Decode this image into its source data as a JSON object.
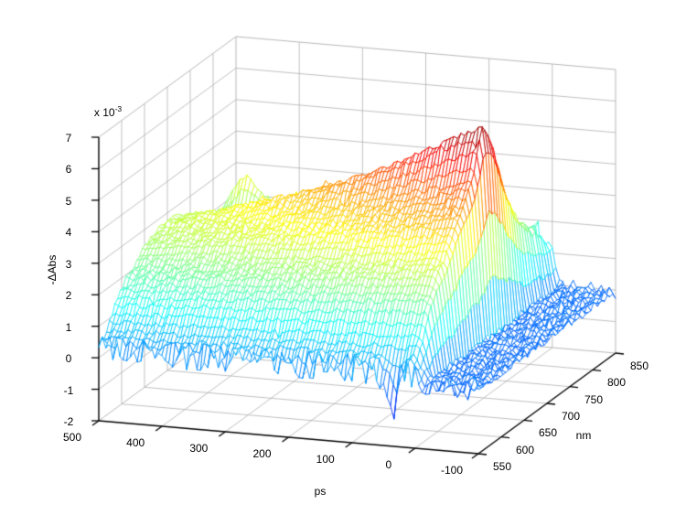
{
  "figure": {
    "background": "#ffffff"
  },
  "chart_data": {
    "type": "surface",
    "style": "mesh3d-wireframe",
    "colormap": "jet",
    "grid": true,
    "axis_color": "#000000",
    "grid_color": "#b0b0b0",
    "face_color": "#ffffff",
    "xlabel": "ps",
    "ylabel": "nm",
    "zlabel": "-ΔAbs",
    "z_exponent_prefix": "x 10",
    "z_exponent_sup": "-3",
    "x_ticks": [
      500,
      400,
      300,
      200,
      100,
      0,
      -100
    ],
    "y_ticks": [
      550,
      600,
      650,
      700,
      750,
      800,
      850
    ],
    "z_ticks": [
      -2,
      -1,
      0,
      1,
      2,
      3,
      4,
      5,
      6,
      7
    ],
    "x_range": [
      -100,
      500
    ],
    "y_range": [
      550,
      850
    ],
    "z_range": [
      -2,
      7
    ],
    "z_value_scale": "1e-3",
    "x_axis_reversed_on_screen": true,
    "times_ps": [
      -100,
      -50,
      -25,
      -10,
      0,
      5,
      10,
      20,
      35,
      60,
      90,
      130,
      180,
      240,
      300,
      370,
      440,
      500
    ],
    "wavelengths_nm": [
      550,
      570,
      590,
      610,
      630,
      650,
      670,
      690,
      710,
      730,
      750,
      770,
      790,
      810,
      830,
      850
    ],
    "values_e3": [
      [
        0,
        0,
        0,
        0,
        0,
        0,
        0,
        0,
        0,
        0,
        0,
        0,
        0,
        0,
        0,
        0
      ],
      [
        0,
        0,
        0,
        0,
        0,
        0,
        0,
        0,
        0,
        0,
        0,
        0,
        0,
        0,
        0,
        0
      ],
      [
        0,
        0,
        0,
        0,
        0,
        0,
        0,
        0,
        0,
        0,
        0,
        0,
        0,
        0,
        0,
        0
      ],
      [
        0,
        0,
        0,
        0,
        0,
        0,
        0,
        0,
        0,
        0,
        0,
        0,
        0,
        0,
        0,
        0
      ],
      [
        0.22,
        0.65,
        1.3,
        1.71,
        1.95,
        2.38,
        2.66,
        3.02,
        3.8,
        3.46,
        2.75,
        2.06,
        1.62,
        1.38,
        1.21,
        1.09
      ],
      [
        0.32,
        0.95,
        1.89,
        2.48,
        2.83,
        3.46,
        3.89,
        4.45,
        5.66,
        5.15,
        4.07,
        3.03,
        2.37,
        2.02,
        1.75,
        1.58
      ],
      [
        0.35,
        1.05,
        2.1,
        2.75,
        3.15,
        3.85,
        4.35,
        5.0,
        6.45,
        5.85,
        4.6,
        3.4,
        2.65,
        2.25,
        1.95,
        -1.9
      ],
      [
        0.35,
        1.05,
        2.1,
        2.75,
        3.15,
        3.85,
        4.34,
        4.98,
        6.39,
        5.8,
        4.57,
        3.39,
        2.64,
        2.25,
        1.95,
        1.75
      ],
      [
        -0.9,
        1.04,
        2.08,
        2.72,
        3.12,
        3.81,
        4.28,
        4.91,
        6.27,
        5.7,
        4.49,
        3.34,
        2.61,
        2.22,
        1.93,
        1.73
      ],
      [
        0.34,
        1.02,
        2.04,
        2.67,
        3.05,
        3.72,
        4.17,
        4.75,
        5.99,
        5.46,
        4.33,
        3.23,
        2.54,
        2.17,
        1.89,
        1.7
      ],
      [
        0.33,
        1.0,
        2.0,
        2.61,
        2.99,
        3.64,
        4.05,
        4.59,
        5.69,
        5.2,
        4.15,
        3.13,
        2.47,
        2.12,
        1.85,
        1.66
      ],
      [
        0.32,
        0.97,
        1.93,
        2.53,
        2.89,
        3.51,
        3.88,
        4.36,
        5.3,
        4.85,
        3.9,
        2.97,
        2.37,
        2.04,
        1.78,
        1.61
      ],
      [
        0.31,
        0.92,
        1.85,
        2.42,
        2.76,
        3.34,
        3.66,
        4.07,
        4.81,
        4.43,
        3.6,
        2.78,
        2.24,
        1.93,
        1.7,
        1.54
      ],
      [
        0.29,
        0.88,
        1.76,
        2.31,
        2.63,
        3.18,
        3.44,
        3.78,
        4.32,
        4.0,
        3.29,
        2.59,
        2.11,
        1.83,
        1.62,
        1.47
      ],
      [
        0.28,
        0.84,
        1.68,
        2.2,
        2.5,
        3.01,
        3.24,
        3.52,
        3.88,
        3.62,
        3.02,
        2.41,
        1.99,
        1.73,
        1.54,
        1.4
      ],
      [
        0.27,
        0.8,
        1.6,
        2.09,
        2.37,
        2.85,
        3.02,
        3.24,
        3.42,
        3.22,
        2.73,
        2.23,
        1.86,
        1.63,
        1.45,
        1.33
      ],
      [
        0.25,
        0.75,
        1.49,
        1.95,
        2.21,
        2.65,
        2.79,
        2.94,
        3.0,
        2.83,
        2.44,
        2.03,
        3.4,
        1.52,
        1.36,
        1.24
      ],
      [
        0.24,
        0.71,
        1.43,
        1.87,
        2.11,
        2.53,
        2.64,
        2.76,
        2.7,
        2.59,
        2.26,
        1.91,
        1.63,
        1.46,
        1.3,
        1.19
      ]
    ]
  }
}
